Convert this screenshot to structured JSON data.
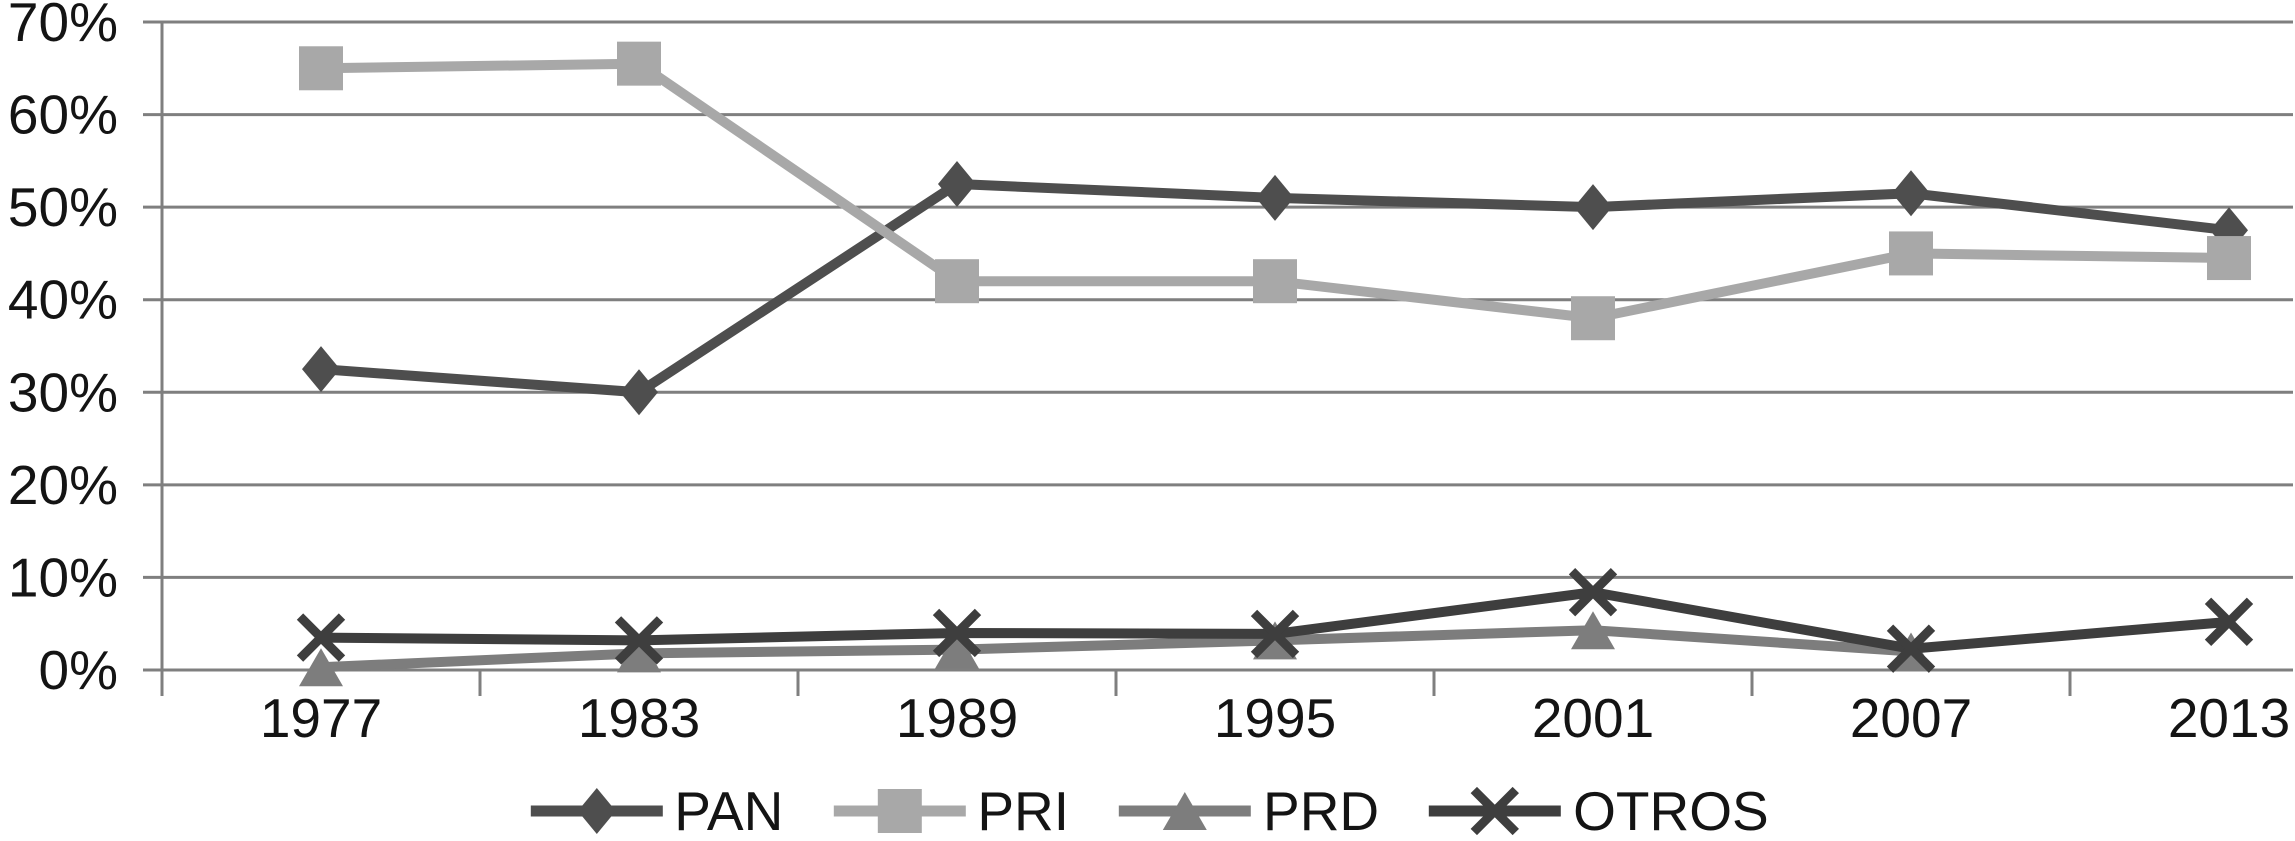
{
  "figure": {
    "background": "#ffffff",
    "title": ""
  },
  "y_axis": {
    "tick_labels": [
      "70%",
      "60%",
      "50%",
      "40%",
      "30%",
      "20%",
      "10%",
      "0%"
    ],
    "min": 0,
    "max": 70,
    "step": 10
  },
  "x_axis": {
    "tick_labels": [
      "1977",
      "1983",
      "1989",
      "1995",
      "2001",
      "2007",
      "2013"
    ]
  },
  "legend": {
    "position": "bottom",
    "labels": [
      "PAN",
      "PRI",
      "PRD",
      "OTROS"
    ]
  },
  "colors": {
    "gridline": "#7f7f7f",
    "axis": "#7f7f7f",
    "text": "#141414",
    "pan": "#4e4e4e",
    "pri": "#a8a8a8",
    "prd": "#7d7d7d",
    "otros": "#3e3e3e"
  },
  "chart_data": {
    "type": "line",
    "title": "",
    "xlabel": "",
    "ylabel": "",
    "categories": [
      "1977",
      "1983",
      "1989",
      "1995",
      "2001",
      "2007",
      "2013"
    ],
    "ylim": [
      0,
      70
    ],
    "ytick_step": 10,
    "grid": true,
    "legend_position": "bottom",
    "series": [
      {
        "name": "PAN",
        "marker": "diamond",
        "color": "#4e4e4e",
        "values": [
          32.5,
          30,
          52.5,
          51,
          50,
          51.5,
          47.5
        ]
      },
      {
        "name": "PRI",
        "marker": "square",
        "color": "#a8a8a8",
        "values": [
          65,
          65.5,
          42,
          42,
          38,
          45,
          44.5
        ]
      },
      {
        "name": "PRD",
        "marker": "triangle",
        "color": "#7d7d7d",
        "values": [
          0.3,
          1.8,
          2.2,
          3.2,
          4.3,
          2,
          null
        ]
      },
      {
        "name": "OTROS",
        "marker": "x",
        "color": "#3e3e3e",
        "values": [
          3.5,
          3.2,
          4,
          3.9,
          8.4,
          2.3,
          5.2
        ]
      }
    ]
  }
}
